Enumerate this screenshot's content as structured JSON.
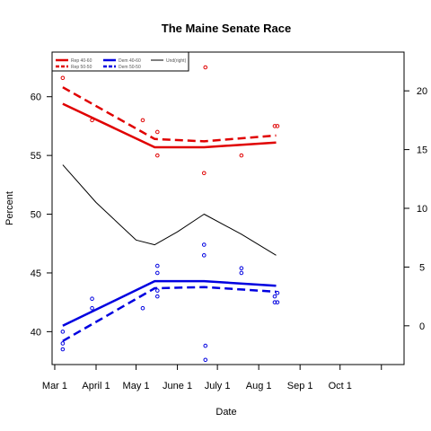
{
  "chart_data": {
    "type": "line",
    "title": "The Maine Senate Race",
    "xlabel": "Date",
    "ylabel": "Percent",
    "x_ticks": [
      {
        "label": "Mar 1",
        "day": 0
      },
      {
        "label": "April 1",
        "day": 31
      },
      {
        "label": "May 1",
        "day": 61
      },
      {
        "label": "June 1",
        "day": 92
      },
      {
        "label": "July 1",
        "day": 122
      },
      {
        "label": "Aug 1",
        "day": 153
      },
      {
        "label": "Sep 1",
        "day": 184
      },
      {
        "label": "Oct 1",
        "day": 214
      },
      {
        "label": "",
        "day": 245
      }
    ],
    "xlim": [
      -2,
      262
    ],
    "ylim_left": [
      37.2,
      63.8
    ],
    "y_ticks_left": [
      40,
      45,
      50,
      55,
      60
    ],
    "ylim_right": [
      -3.3,
      23.3
    ],
    "y_ticks_right": [
      0,
      5,
      10,
      15,
      20
    ],
    "grid": false,
    "legend": {
      "position": "top-left",
      "entries": [
        {
          "label": "Rep 40-60",
          "color": "#e00000",
          "dash": "solid",
          "width": 2.5
        },
        {
          "label": "Rep 50-50",
          "color": "#e00000",
          "dash": "dashed",
          "width": 2.5
        },
        {
          "label": "Dem 40-60",
          "color": "#0000e0",
          "dash": "solid",
          "width": 2.5
        },
        {
          "label": "Dem 50-50",
          "color": "#0000e0",
          "dash": "dashed",
          "width": 2.5
        },
        {
          "label": "Und(right)",
          "color": "#000000",
          "dash": "solid",
          "width": 1
        }
      ]
    },
    "series": [
      {
        "name": "Rep 40-60",
        "axis": "left",
        "color": "#e00000",
        "dash": "solid",
        "width": 2.5,
        "x": [
          6,
          75,
          112,
          166
        ],
        "y": [
          59.4,
          55.7,
          55.7,
          56.1
        ]
      },
      {
        "name": "Rep 50-50",
        "axis": "left",
        "color": "#e00000",
        "dash": "dashed",
        "width": 2.5,
        "x": [
          6,
          75,
          112,
          166
        ],
        "y": [
          60.8,
          56.4,
          56.2,
          56.7
        ]
      },
      {
        "name": "Dem 40-60",
        "axis": "left",
        "color": "#0000e0",
        "dash": "solid",
        "width": 2.5,
        "x": [
          6,
          75,
          112,
          166
        ],
        "y": [
          40.5,
          44.3,
          44.3,
          43.9
        ]
      },
      {
        "name": "Dem 50-50",
        "axis": "left",
        "color": "#0000e0",
        "dash": "dashed",
        "width": 2.5,
        "x": [
          6,
          75,
          112,
          166
        ],
        "y": [
          39.2,
          43.7,
          43.8,
          43.4
        ]
      },
      {
        "name": "Und(right)",
        "axis": "right",
        "color": "#000000",
        "dash": "solid",
        "width": 1,
        "x": [
          6,
          31,
          61,
          75,
          92,
          112,
          140,
          166
        ],
        "y": [
          13.7,
          10.5,
          7.3,
          6.9,
          8.0,
          9.5,
          7.8,
          6.0
        ]
      }
    ],
    "points": [
      {
        "color": "#e00000",
        "x": [
          6,
          28,
          66,
          77,
          77,
          112,
          113,
          140,
          165,
          167
        ],
        "y": [
          61.6,
          58.0,
          58.0,
          57.0,
          55.0,
          53.5,
          62.5,
          55.0,
          57.5,
          57.5
        ]
      },
      {
        "color": "#0000e0",
        "x": [
          6,
          6,
          6,
          28,
          28,
          66,
          77,
          77,
          77,
          77,
          112,
          112,
          113,
          113,
          140,
          140,
          165,
          165,
          167,
          167
        ],
        "y": [
          40.0,
          39.0,
          38.5,
          42.8,
          42.0,
          42.0,
          45.6,
          45.0,
          43.5,
          43.0,
          47.4,
          46.5,
          38.8,
          37.6,
          45.4,
          45.0,
          43.0,
          42.5,
          43.3,
          42.5
        ]
      }
    ]
  }
}
